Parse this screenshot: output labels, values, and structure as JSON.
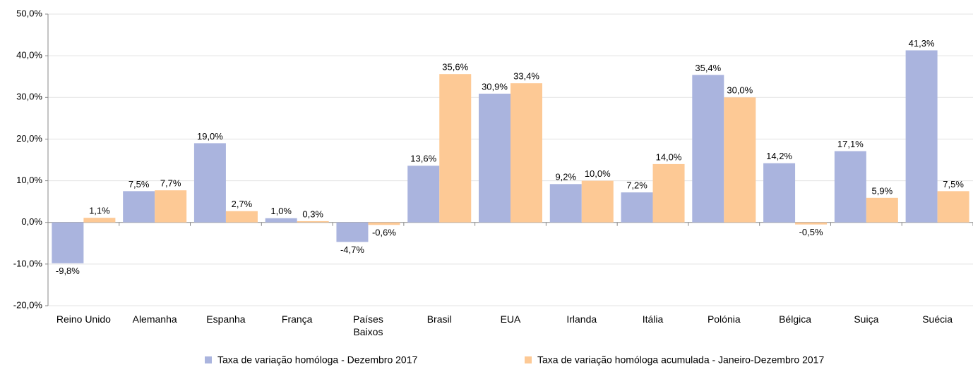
{
  "chart_data": {
    "type": "bar",
    "categories": [
      "Reino Unido",
      "Alemanha",
      "Espanha",
      "França",
      "Países Baixos",
      "Brasil",
      "EUA",
      "Irlanda",
      "Itália",
      "Polónia",
      "Bélgica",
      "Suiça",
      "Suécia"
    ],
    "series": [
      {
        "name": "Taxa de variação homóloga - Dezembro 2017",
        "color": "#aab4de",
        "values": [
          -9.8,
          7.5,
          19.0,
          1.0,
          -4.7,
          13.6,
          30.9,
          9.2,
          7.2,
          35.4,
          14.2,
          17.1,
          41.3
        ],
        "value_labels": [
          "-9,8%",
          "7,5%",
          "19,0%",
          "1,0%",
          "-4,7%",
          "13,6%",
          "30,9%",
          "9,2%",
          "7,2%",
          "35,4%",
          "14,2%",
          "17,1%",
          "41,3%"
        ]
      },
      {
        "name": "Taxa de variação homóloga acumulada - Janeiro-Dezembro 2017",
        "color": "#fdc995",
        "values": [
          1.1,
          7.7,
          2.7,
          0.3,
          -0.6,
          35.6,
          33.4,
          10.0,
          14.0,
          30.0,
          -0.5,
          5.9,
          7.5
        ],
        "value_labels": [
          "1,1%",
          "7,7%",
          "2,7%",
          "0,3%",
          "-0,6%",
          "35,6%",
          "33,4%",
          "10,0%",
          "14,0%",
          "30,0%",
          "-0,5%",
          "5,9%",
          "7,5%"
        ]
      }
    ],
    "ylim": [
      -20,
      50
    ],
    "yticks": [
      {
        "value": -20,
        "label": "-20,0%"
      },
      {
        "value": -10,
        "label": "-10,0%"
      },
      {
        "value": 0,
        "label": "0,0%"
      },
      {
        "value": 10,
        "label": "10,0%"
      },
      {
        "value": 20,
        "label": "20,0%"
      },
      {
        "value": 30,
        "label": "30,0%"
      },
      {
        "value": 40,
        "label": "40,0%"
      },
      {
        "value": 50,
        "label": "50,0%"
      }
    ],
    "grid": true,
    "legend": "bottom"
  }
}
